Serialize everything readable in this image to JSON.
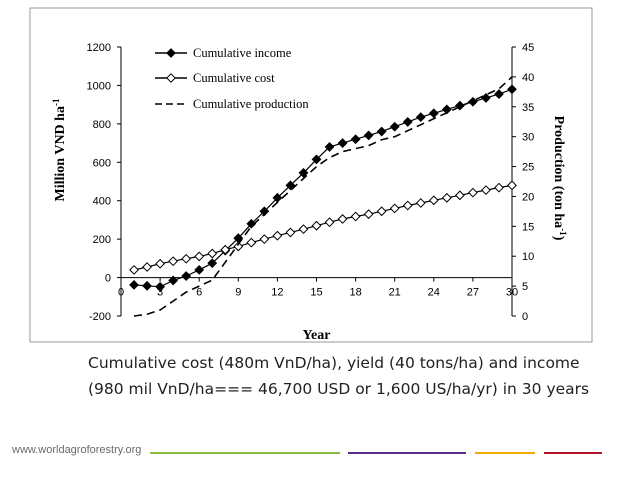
{
  "chart_data": {
    "type": "line",
    "x": [
      1,
      2,
      3,
      4,
      5,
      6,
      7,
      8,
      9,
      10,
      11,
      12,
      13,
      14,
      15,
      16,
      17,
      18,
      19,
      20,
      21,
      22,
      23,
      24,
      25,
      26,
      27,
      28,
      29,
      30
    ],
    "xlabel": "Year",
    "xticks": [
      0,
      3,
      6,
      9,
      12,
      15,
      18,
      21,
      24,
      27,
      30
    ],
    "xlim": [
      0,
      30
    ],
    "ylabel_left": "Million VND ha",
    "ylabel_left_sup": "-1",
    "ylim_left": [
      -200,
      1200
    ],
    "yticks_left": [
      -200,
      0,
      200,
      400,
      600,
      800,
      1000,
      1200
    ],
    "ylabel_right": "Production (ton ha",
    "ylabel_right_sup": "-1",
    "ylabel_right_close": ")",
    "ylim_right": [
      0,
      45
    ],
    "yticks_right": [
      0,
      5,
      10,
      15,
      20,
      25,
      30,
      35,
      40,
      45
    ],
    "legend_position": "top-left",
    "series": [
      {
        "name": "Cumulative income",
        "axis": "left",
        "marker": "filled-diamond",
        "values": [
          -38,
          -43,
          -48,
          -15,
          8,
          40,
          75,
          140,
          205,
          280,
          345,
          415,
          480,
          545,
          615,
          680,
          700,
          720,
          740,
          760,
          785,
          810,
          835,
          855,
          875,
          895,
          915,
          935,
          955,
          980
        ]
      },
      {
        "name": "Cumulative cost",
        "axis": "left",
        "marker": "open-diamond",
        "values": [
          40,
          55,
          72,
          85,
          98,
          110,
          125,
          145,
          162,
          182,
          200,
          218,
          235,
          252,
          270,
          288,
          305,
          318,
          330,
          345,
          360,
          375,
          388,
          402,
          415,
          428,
          442,
          455,
          468,
          480
        ]
      },
      {
        "name": "Cumulative production",
        "axis": "right",
        "marker": "none",
        "values": [
          0,
          0.3,
          1,
          2.5,
          4,
          5,
          6,
          9,
          12,
          15,
          17,
          19,
          21,
          23,
          25,
          26.5,
          27.5,
          28,
          28.5,
          29.5,
          30,
          31,
          32,
          33,
          34,
          35,
          36,
          37,
          38,
          40
        ]
      }
    ]
  },
  "caption": {
    "line1": "Cumulative cost (480m VnD/ha),  yield (40 tons/ha) and income",
    "line2": "(980 mil VnD/ha=== 46,700 USD or 1,600 US/ha/yr) in 30 years"
  },
  "footer": {
    "url": "www.worldagroforestry.org",
    "bar_colors": [
      "#8dbb3e",
      "#5b2d86",
      "#f2a900",
      "#b2152d"
    ]
  }
}
